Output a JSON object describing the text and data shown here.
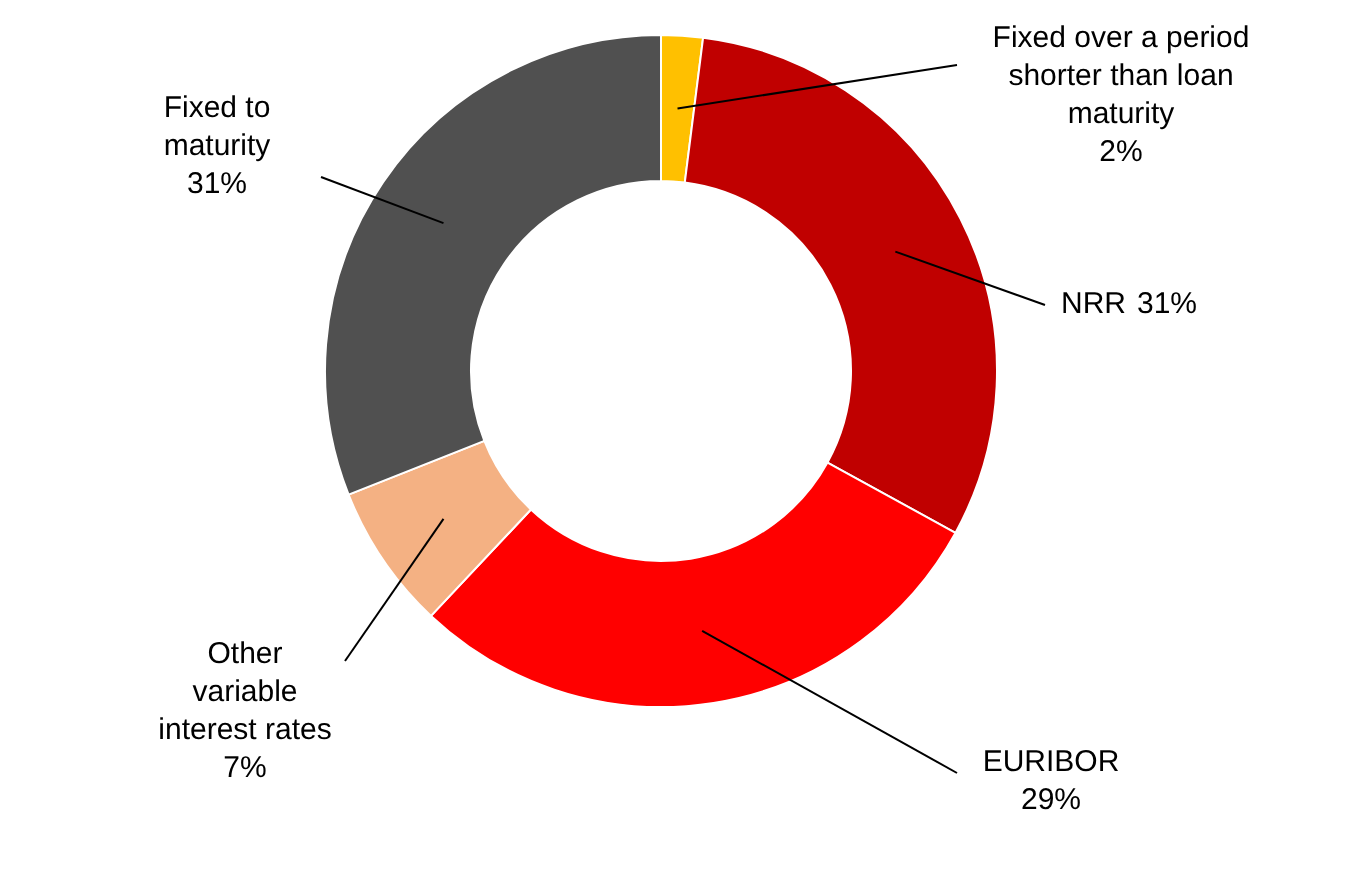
{
  "chart_data": {
    "type": "donut",
    "categories": [
      "Fixed over a period shorter than loan maturity",
      "NRR",
      "EURIBOR",
      "Other variable interest rates",
      "Fixed to maturity"
    ],
    "values": [
      2,
      31,
      29,
      7,
      31
    ],
    "colors": [
      "#ffc000",
      "#c00000",
      "#ff0000",
      "#f4b183",
      "#505050"
    ],
    "value_labels": [
      "2%",
      "31%",
      "29%",
      "7%",
      "31%"
    ]
  }
}
